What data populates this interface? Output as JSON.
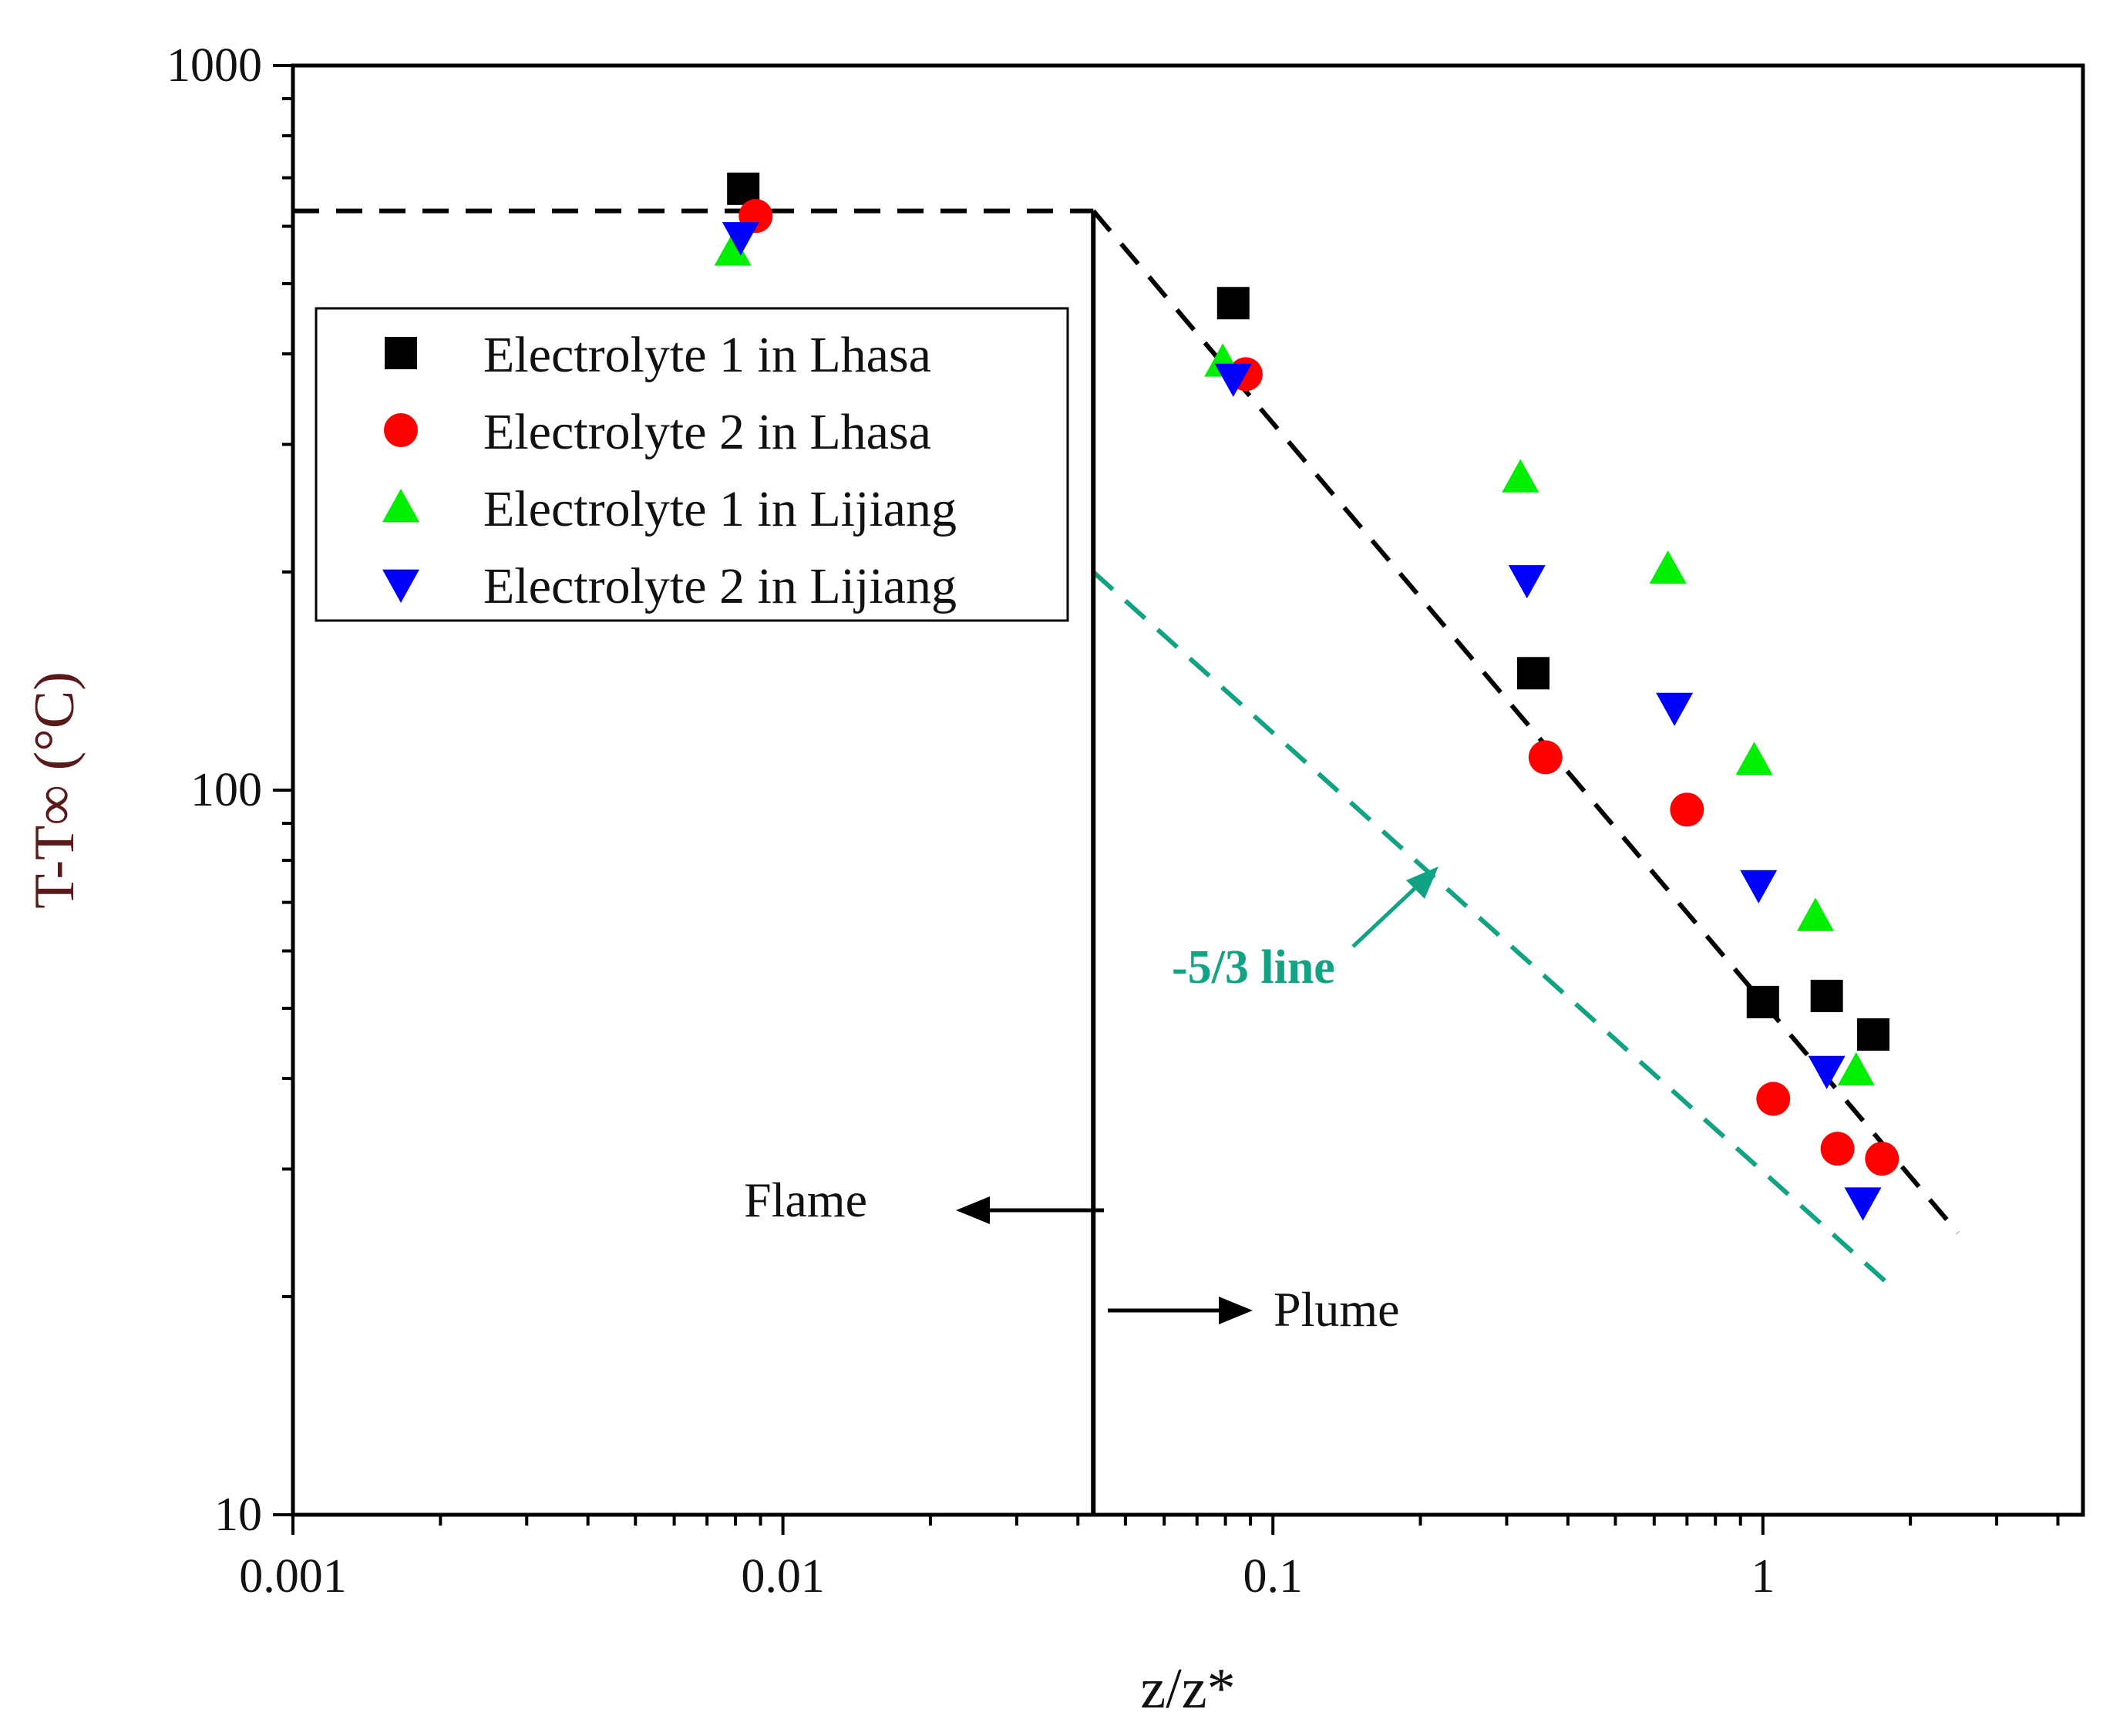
{
  "chart_data": {
    "type": "scatter",
    "xscale": "log",
    "yscale": "log",
    "xlim": [
      0.001,
      4.5
    ],
    "ylim": [
      10,
      1000
    ],
    "xlabel": "z/z*",
    "ylabel": "T-T∞ (°C)",
    "xticks": [
      {
        "value": 0.001,
        "label": "0.001"
      },
      {
        "value": 0.01,
        "label": "0.01"
      },
      {
        "value": 0.1,
        "label": "0.1"
      },
      {
        "value": 1,
        "label": "1"
      }
    ],
    "yticks": [
      {
        "value": 10,
        "label": "10"
      },
      {
        "value": 100,
        "label": "100"
      },
      {
        "value": 1000,
        "label": "1000"
      }
    ],
    "legend_position": "upper-left",
    "series": [
      {
        "name": "Electrolyte 1 in Lhasa",
        "marker": "square",
        "color": "#000000",
        "points": [
          [
            0.0083,
            676
          ],
          [
            0.083,
            470
          ],
          [
            0.34,
            145
          ],
          [
            1.0,
            51
          ],
          [
            1.35,
            52
          ],
          [
            1.68,
            46
          ]
        ]
      },
      {
        "name": "Electrolyte 2 in Lhasa",
        "marker": "circle",
        "color": "#ff0000",
        "points": [
          [
            0.0088,
            620
          ],
          [
            0.088,
            375
          ],
          [
            0.36,
            111
          ],
          [
            0.7,
            94
          ],
          [
            1.05,
            37.5
          ],
          [
            1.42,
            32
          ],
          [
            1.75,
            31
          ]
        ]
      },
      {
        "name": "Electrolyte 1 in Lijiang",
        "marker": "triangle-up",
        "color": "#00ee00",
        "points": [
          [
            0.0079,
            555
          ],
          [
            0.079,
            390
          ],
          [
            0.32,
            270
          ],
          [
            0.64,
            202
          ],
          [
            0.96,
            110
          ],
          [
            1.28,
            67
          ],
          [
            1.55,
            41
          ]
        ]
      },
      {
        "name": "Electrolyte 2 in Lijiang",
        "marker": "triangle-down",
        "color": "#0000ff",
        "points": [
          [
            0.0082,
            580
          ],
          [
            0.083,
            370
          ],
          [
            0.33,
            195
          ],
          [
            0.66,
            130
          ],
          [
            0.98,
            74
          ],
          [
            1.35,
            41
          ],
          [
            1.6,
            27
          ]
        ]
      }
    ],
    "reference_lines": [
      {
        "name": "flame-plateau",
        "style": "dashed",
        "color": "#000000",
        "points": [
          [
            0.001,
            630
          ],
          [
            0.043,
            630
          ]
        ]
      },
      {
        "name": "plume-decay",
        "style": "dashed",
        "color": "#000000",
        "points": [
          [
            0.043,
            630
          ],
          [
            2.5,
            24.5
          ]
        ]
      },
      {
        "name": "-5/3 line",
        "style": "dashed",
        "color": "#11a383",
        "points": [
          [
            0.043,
            200
          ],
          [
            1.85,
            20.5
          ]
        ]
      },
      {
        "name": "flame-plume-boundary",
        "style": "solid",
        "color": "#000000",
        "points": [
          [
            0.043,
            10
          ],
          [
            0.043,
            630
          ]
        ]
      }
    ],
    "annotations": {
      "flame": "Flame",
      "plume": "Plume",
      "slope_label": "-5/3 line"
    }
  }
}
